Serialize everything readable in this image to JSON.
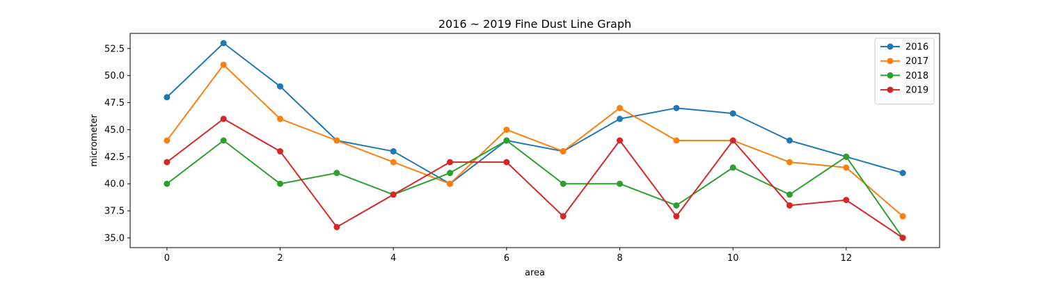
{
  "chart_data": {
    "type": "line",
    "title": "2016 ~ 2019 Fine Dust Line Graph",
    "xlabel": "area",
    "ylabel": "micrometer",
    "x": [
      0,
      1,
      2,
      3,
      4,
      5,
      6,
      7,
      8,
      9,
      10,
      11,
      12,
      13
    ],
    "xlim": [
      -0.65,
      13.65
    ],
    "ylim": [
      34.1,
      53.9
    ],
    "xticks": [
      0,
      2,
      4,
      6,
      8,
      10,
      12
    ],
    "yticks": [
      35.0,
      37.5,
      40.0,
      42.5,
      45.0,
      47.5,
      50.0,
      52.5
    ],
    "xtick_labels": [
      "0",
      "2",
      "4",
      "6",
      "8",
      "10",
      "12"
    ],
    "ytick_labels": [
      "35.0",
      "37.5",
      "40.0",
      "42.5",
      "45.0",
      "47.5",
      "50.0",
      "52.5"
    ],
    "grid": false,
    "legend_position": "top-right",
    "series": [
      {
        "name": "2016",
        "color": "#1f77b4",
        "values": [
          48,
          53,
          49,
          44,
          43,
          40,
          44,
          43,
          46,
          47,
          46.5,
          44,
          42.5,
          41
        ]
      },
      {
        "name": "2017",
        "color": "#ff7f0e",
        "values": [
          44,
          51,
          46,
          44,
          42,
          40,
          45,
          43,
          47,
          44,
          44,
          42,
          41.5,
          37
        ]
      },
      {
        "name": "2018",
        "color": "#2ca02c",
        "values": [
          40,
          44,
          40,
          41,
          39,
          41,
          44,
          40,
          40,
          38,
          41.5,
          39,
          42.5,
          35
        ]
      },
      {
        "name": "2019",
        "color": "#d62728",
        "values": [
          42,
          46,
          43,
          36,
          39,
          42,
          42,
          37,
          44,
          37,
          44,
          38,
          38.5,
          35
        ]
      }
    ]
  }
}
